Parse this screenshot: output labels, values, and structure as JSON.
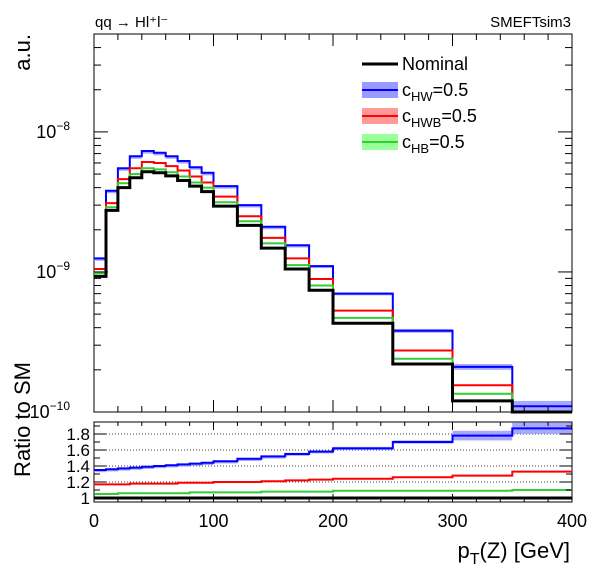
{
  "header": {
    "process": "qq → Hl⁺l⁻",
    "generator": "SMEFTsim3"
  },
  "axes": {
    "ylabel_top": "a.u.",
    "ylabel_bottom": "Ratio to SM",
    "xlabel": "p_T(Z) [GeV]"
  },
  "legend": [
    {
      "name": "Nominal",
      "base": "Nominal",
      "sub": "",
      "suffix": "",
      "color": "#000000",
      "band": ""
    },
    {
      "name": "c_HW=0.5",
      "base": "c",
      "sub": "HW",
      "suffix": "=0.5",
      "color": "#0000ff",
      "band": "#9999ff"
    },
    {
      "name": "c_HWB=0.5",
      "base": "c",
      "sub": "HWB",
      "suffix": "=0.5",
      "color": "#ff0000",
      "band": "#ff9999"
    },
    {
      "name": "c_HB=0.5",
      "base": "c",
      "sub": "HB",
      "suffix": "=0.5",
      "color": "#33cc33",
      "band": "#99ff99"
    }
  ],
  "chart_data": {
    "type": "line",
    "style": "step-histogram",
    "x_edges": [
      0,
      10,
      20,
      30,
      40,
      50,
      60,
      70,
      80,
      90,
      100,
      120,
      140,
      160,
      180,
      200,
      250,
      300,
      350,
      400
    ],
    "xlim": [
      0,
      400
    ],
    "x_ticks": [
      0,
      100,
      200,
      300,
      400
    ],
    "ylim": [
      1e-10,
      5e-08
    ],
    "y_scale": "log",
    "y_ticks": [
      {
        "value": 1e-10,
        "mant": "10",
        "exp": "−10"
      },
      {
        "value": 1e-09,
        "mant": "10",
        "exp": "−9"
      },
      {
        "value": 1e-08,
        "mant": "10",
        "exp": "−8"
      }
    ],
    "series": [
      {
        "name": "Nominal",
        "color": "#000000",
        "values": [
          9.3e-10,
          2.75e-09,
          4e-09,
          4.7e-09,
          5.2e-09,
          5.1e-09,
          4.85e-09,
          4.5e-09,
          4.1e-09,
          3.75e-09,
          2.95e-09,
          2.15e-09,
          1.48e-09,
          1.05e-09,
          7.4e-10,
          4.3e-10,
          2.2e-10,
          1.2e-10,
          1e-10
        ],
        "band": []
      },
      {
        "name": "c_HW=0.5",
        "color": "#0000ff",
        "values": [
          1.25e-09,
          3.8e-09,
          5.5e-09,
          6.7e-09,
          7.3e-09,
          7.1e-09,
          6.7e-09,
          6.2e-09,
          5.6e-09,
          5.1e-09,
          4.1e-09,
          3e-09,
          2.1e-09,
          1.55e-09,
          1.1e-09,
          7e-10,
          3.8e-10,
          2.1e-10,
          1.1e-10
        ],
        "band": [
          1e-11,
          3e-11,
          4e-11,
          5e-11,
          5e-11,
          5e-11,
          5e-11,
          4e-11,
          4e-11,
          4e-11,
          3e-11,
          3e-11,
          2e-11,
          2e-11,
          2e-11,
          1.5e-11,
          1.2e-11,
          1e-11,
          1e-11
        ]
      },
      {
        "name": "c_HWB=0.5",
        "color": "#ff0000",
        "values": [
          1.05e-09,
          3.1e-09,
          4.6e-09,
          5.5e-09,
          6.1e-09,
          6e-09,
          5.7e-09,
          5.3e-09,
          4.8e-09,
          4.35e-09,
          3.45e-09,
          2.5e-09,
          1.75e-09,
          1.25e-09,
          8.9e-10,
          5.3e-10,
          2.75e-10,
          1.55e-10,
          1e-10
        ],
        "band": []
      },
      {
        "name": "c_HB=0.5",
        "color": "#33cc33",
        "values": [
          9.8e-10,
          2.9e-09,
          4.3e-09,
          5e-09,
          5.5e-09,
          5.4e-09,
          5.15e-09,
          4.8e-09,
          4.35e-09,
          4e-09,
          3.15e-09,
          2.3e-09,
          1.6e-09,
          1.12e-09,
          8e-10,
          4.7e-10,
          2.4e-10,
          1.35e-10,
          1e-10
        ],
        "band": []
      }
    ],
    "ratio": {
      "ylim": [
        0.95,
        1.95
      ],
      "y_ticks": [
        {
          "value": 1.0,
          "label": "1"
        },
        {
          "value": 1.2,
          "label": "1.2"
        },
        {
          "value": 1.4,
          "label": "1.4"
        },
        {
          "value": 1.6,
          "label": "1.6"
        },
        {
          "value": 1.8,
          "label": "1.8"
        }
      ],
      "grid": "dotted",
      "series": [
        {
          "name": "Nominal",
          "color": "#000000",
          "values": [
            1,
            1,
            1,
            1,
            1,
            1,
            1,
            1,
            1,
            1,
            1,
            1,
            1,
            1,
            1,
            1,
            1,
            1,
            1
          ]
        },
        {
          "name": "c_HW=0.5",
          "color": "#0000ff",
          "band": [
            0.01,
            0.01,
            0.01,
            0.01,
            0.01,
            0.01,
            0.01,
            0.01,
            0.01,
            0.01,
            0.01,
            0.01,
            0.01,
            0.015,
            0.015,
            0.02,
            0.02,
            0.06,
            0.07
          ],
          "values": [
            1.35,
            1.36,
            1.37,
            1.38,
            1.39,
            1.4,
            1.41,
            1.42,
            1.43,
            1.44,
            1.46,
            1.49,
            1.52,
            1.55,
            1.58,
            1.62,
            1.7,
            1.78,
            1.87
          ]
        },
        {
          "name": "c_HWB=0.5",
          "color": "#ff0000",
          "band": [],
          "values": [
            1.17,
            1.17,
            1.17,
            1.18,
            1.18,
            1.18,
            1.18,
            1.19,
            1.19,
            1.19,
            1.2,
            1.2,
            1.21,
            1.22,
            1.23,
            1.24,
            1.26,
            1.28,
            1.33
          ]
        },
        {
          "name": "c_HB=0.5",
          "color": "#33cc33",
          "band": [],
          "values": [
            1.05,
            1.05,
            1.06,
            1.06,
            1.06,
            1.06,
            1.06,
            1.06,
            1.07,
            1.07,
            1.07,
            1.07,
            1.08,
            1.08,
            1.08,
            1.09,
            1.09,
            1.09,
            1.1
          ]
        }
      ]
    }
  }
}
